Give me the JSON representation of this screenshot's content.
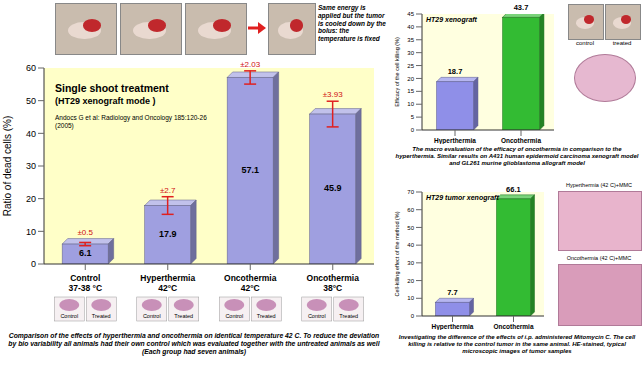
{
  "chart_data": [
    {
      "type": "bar",
      "title": "Single shoot treatment",
      "subtitle": "(HT29 xenograft mode )",
      "note": "Andocs G et al: Radiology and Oncology 185:120-26 (2005)",
      "annotation": "Same energy is applied but the tumor is cooled down by the bolus: the temperature is fixed",
      "y_label": "Ratio of dead cells (%)",
      "categories": [
        "Control 37-38 °C",
        "Hyperthermia 42°C",
        "Oncothermia 42°C",
        "Oncothermia 38°C"
      ],
      "values": [
        6.1,
        17.9,
        57.1,
        45.9
      ],
      "errors": [
        0.5,
        2.7,
        2.03,
        3.93
      ],
      "error_labels": [
        "±0.5",
        "±2.7",
        "±2.03",
        "±3.93"
      ],
      "color": "#9f9fe0",
      "ylim": [
        0,
        60
      ],
      "yticks": [
        0,
        10,
        20,
        30,
        40,
        50,
        60
      ],
      "grid": false,
      "data_labels": true,
      "image_labels": [
        "Control",
        "Treated"
      ],
      "caption": "Comparison of the effects of hyperthermia and oncothermia on identical temperature 42 C. To reduce the deviation by bio variability all animals had their own control which was evaluated together with the untreated animals as well (Each group had seven animals)"
    },
    {
      "type": "bar",
      "title": "HT29 xenograft",
      "y_label": "Efficacy of the cell killing (%)",
      "categories": [
        "Hyperthermia",
        "Oncothermia"
      ],
      "values": [
        18.7,
        43.7
      ],
      "colors": [
        "#8f8fe8",
        "#33bb33"
      ],
      "ylim": [
        0,
        45
      ],
      "yticks": [
        0,
        5,
        10,
        15,
        20,
        25,
        30,
        35,
        40,
        45
      ],
      "grid": false,
      "data_labels": true,
      "image_labels": [
        "control",
        "treated"
      ],
      "caption": "The macro evaluation of the efficacy of oncothermia in comparison to the hyperthermia. Similar results on A431 human epidermoid carcinoma xenograft model and GL261 murine glioblastoma allograft model"
    },
    {
      "type": "bar",
      "title": "HT29 tumor xenograft",
      "y_label": "Cell-killing effect of the method (%)",
      "categories": [
        "Hyperthermia",
        "Oncothermia"
      ],
      "values": [
        7.7,
        66.1
      ],
      "colors": [
        "#8f8fe8",
        "#33bb33"
      ],
      "ylim": [
        0,
        70
      ],
      "yticks": [
        0,
        10,
        20,
        30,
        40,
        50,
        60,
        70
      ],
      "grid": false,
      "data_labels": true,
      "image_labels": [
        "Hyperthermia (42 C)+MMC",
        "Oncothermia (42 C)+MMC"
      ],
      "caption": "Investigating the difference of the effects of i.p. administered Mitomycin C. The cell killing is relative to the control tumor in the same animal. HE-stained, typical microscopic images of tumor samples"
    }
  ]
}
